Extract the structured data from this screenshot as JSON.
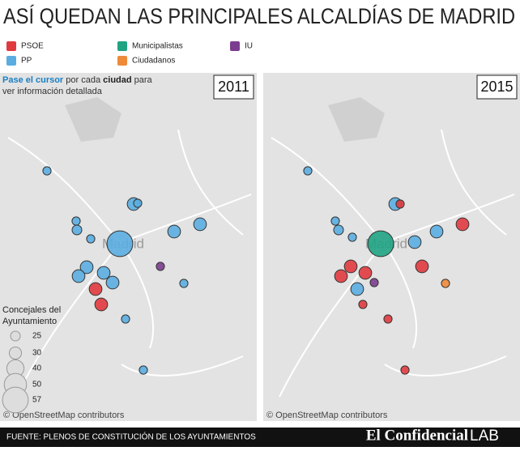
{
  "title": "ASÍ QUEDAN LAS PRINCIPALES ALCALDÍAS DE MADRID",
  "legend": [
    {
      "name": "PSOE",
      "color": "#e03a3e"
    },
    {
      "name": "PP",
      "color": "#5aade0"
    },
    {
      "name": "Municipalistas",
      "color": "#1fa383"
    },
    {
      "name": "Ciudadanos",
      "color": "#ee8a3a"
    },
    {
      "name": "IU",
      "color": "#7b3d8f"
    }
  ],
  "instruction": {
    "bold1": "Pase el cursor",
    "text1": " por cada ",
    "bold2": "ciudad",
    "text2": " para",
    "line2": "ver información detallada"
  },
  "size_legend": {
    "title": [
      "Concejales del",
      "Ayuntamiento"
    ],
    "values": [
      25,
      30,
      40,
      50,
      57
    ]
  },
  "city_label": "Madrid",
  "attribution": "© OpenStreetMap contributors",
  "panels": [
    {
      "year": "2011",
      "bubbles": [
        {
          "party": "PP",
          "concejales": 22
        },
        {
          "party": "PP",
          "concejales": 31
        },
        {
          "party": "PP",
          "concejales": 22
        },
        {
          "party": "PP",
          "concejales": 22
        },
        {
          "party": "PP",
          "concejales": 25
        },
        {
          "party": "PP",
          "concejales": 57
        },
        {
          "party": "PP",
          "concejales": 22
        },
        {
          "party": "PP",
          "concejales": 31
        },
        {
          "party": "PP",
          "concejales": 31
        },
        {
          "party": "PP",
          "concejales": 31
        },
        {
          "party": "PP",
          "concejales": 31
        },
        {
          "party": "PP",
          "concejales": 31
        },
        {
          "party": "PP",
          "concejales": 31
        },
        {
          "party": "IU",
          "concejales": 22
        },
        {
          "party": "PSOE",
          "concejales": 31
        },
        {
          "party": "PSOE",
          "concejales": 31
        },
        {
          "party": "PP",
          "concejales": 22
        },
        {
          "party": "PP",
          "concejales": 22
        },
        {
          "party": "PP",
          "concejales": 22
        }
      ]
    },
    {
      "year": "2015",
      "bubbles": [
        {
          "party": "PP",
          "concejales": 22
        },
        {
          "party": "PP",
          "concejales": 31
        },
        {
          "party": "PSOE",
          "concejales": 22
        },
        {
          "party": "PP",
          "concejales": 22
        },
        {
          "party": "PP",
          "concejales": 25
        },
        {
          "party": "Municipalistas",
          "concejales": 57
        },
        {
          "party": "PP",
          "concejales": 22
        },
        {
          "party": "PSOE",
          "concejales": 31
        },
        {
          "party": "PP",
          "concejales": 31
        },
        {
          "party": "PP",
          "concejales": 31
        },
        {
          "party": "PSOE",
          "concejales": 31
        },
        {
          "party": "PSOE",
          "concejales": 31
        },
        {
          "party": "PSOE",
          "concejales": 31
        },
        {
          "party": "IU",
          "concejales": 22
        },
        {
          "party": "PSOE",
          "concejales": 31
        },
        {
          "party": "PP",
          "concejales": 31
        },
        {
          "party": "PSOE",
          "concejales": 22
        },
        {
          "party": "Ciudadanos",
          "concejales": 22
        },
        {
          "party": "PSOE",
          "concejales": 22
        },
        {
          "party": "PSOE",
          "concejales": 22
        }
      ]
    }
  ],
  "footer": {
    "source": "FUENTE: PLENOS DE CONSTITUCIÓN DE LOS AYUNTAMIENTOS",
    "brand": "El Confidencial",
    "brand_suffix": "LAB"
  }
}
